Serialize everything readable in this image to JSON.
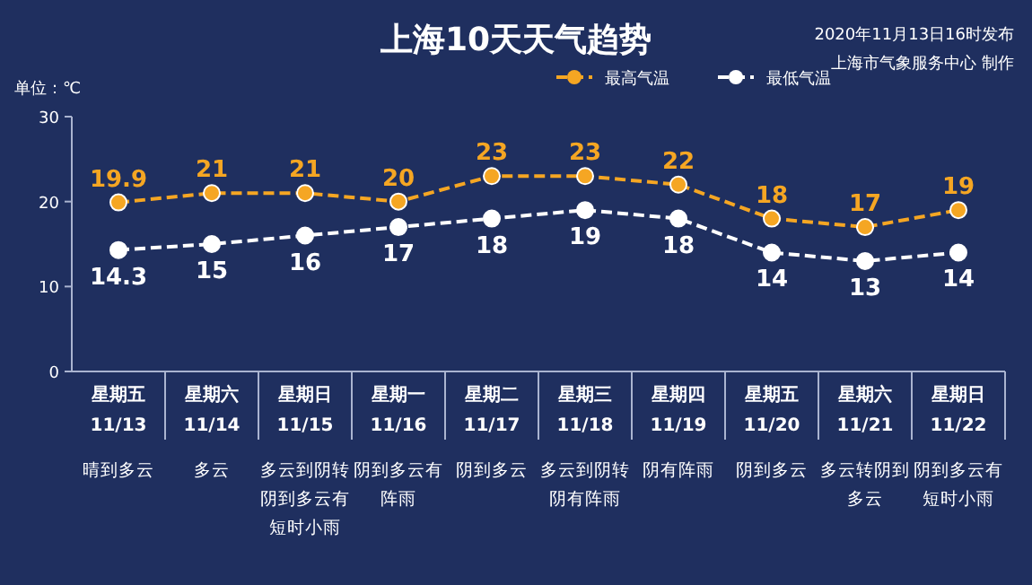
{
  "chart_data": {
    "type": "line",
    "title": "上海10天天气趋势",
    "ylabel": "单位：℃",
    "categories": [
      "星期五\n11/13\n晴到多云",
      "星期六\n11/14\n多云",
      "星期日\n11/15\n多云到阴转阴到多云有短时小雨",
      "星期一\n11/16\n阴到多云有阵雨",
      "星期二\n11/17\n阴到多云",
      "星期三\n11/18\n多云到阴转阴有阵雨",
      "星期四\n11/19\n阴有阵雨",
      "星期五\n11/20\n阴到多云",
      "星期六\n11/21\n多云转阴到多云",
      "星期日\n11/22\n阴到多云有短时小雨"
    ],
    "series": [
      {
        "name": "最高气温",
        "color": "#f5a623",
        "values": [
          19.9,
          21,
          21,
          20,
          23,
          23,
          22,
          18,
          17,
          19
        ]
      },
      {
        "name": "最低气温",
        "color": "#ffffff",
        "values": [
          14.3,
          15,
          16,
          17,
          18,
          19,
          18,
          14,
          13,
          14
        ]
      }
    ],
    "ylim": [
      0,
      30
    ],
    "yticks": [
      0,
      10,
      20,
      30
    ],
    "grid": false,
    "legend": "top right",
    "marker": "circle",
    "line_style": "dashed",
    "data_labels": true,
    "annotations": [
      "2020年11月13日16时发布",
      "上海市气象服务中心 制作"
    ]
  }
}
